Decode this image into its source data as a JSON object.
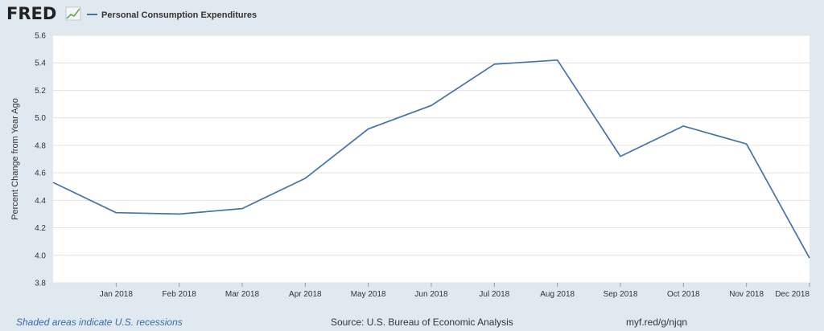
{
  "branding": {
    "logo_text": "FRED"
  },
  "legend": {
    "series_name": "Personal Consumption Expenditures",
    "color": "#4572a7"
  },
  "chart_data": {
    "type": "line",
    "title": "",
    "xlabel": "",
    "ylabel": "Percent Change from Year Ago",
    "ylim": [
      3.8,
      5.6
    ],
    "yticks": [
      "3.8",
      "4.0",
      "4.2",
      "4.4",
      "4.6",
      "4.8",
      "5.0",
      "5.2",
      "5.4",
      "5.6"
    ],
    "x_tick_labels": [
      "Jan 2018",
      "Feb 2018",
      "Mar 2018",
      "Apr 2018",
      "May 2018",
      "Jun 2018",
      "Jul 2018",
      "Aug 2018",
      "Sep 2018",
      "Oct 2018",
      "Nov 2018",
      "Dec 2018"
    ],
    "series": [
      {
        "name": "Personal Consumption Expenditures",
        "color": "#4572a7",
        "x": [
          "2017-12",
          "2018-01",
          "2018-02",
          "2018-03",
          "2018-04",
          "2018-05",
          "2018-06",
          "2018-07",
          "2018-08",
          "2018-09",
          "2018-10",
          "2018-11",
          "2018-12"
        ],
        "values": [
          4.53,
          4.31,
          4.3,
          4.34,
          4.56,
          4.92,
          5.09,
          5.39,
          5.42,
          4.72,
          4.94,
          4.81,
          3.98
        ]
      }
    ],
    "grid": true
  },
  "footer": {
    "recession_note": "Shaded areas indicate U.S. recessions",
    "source": "Source: U.S. Bureau of Economic Analysis",
    "short_url": "myf.red/g/njqn"
  }
}
